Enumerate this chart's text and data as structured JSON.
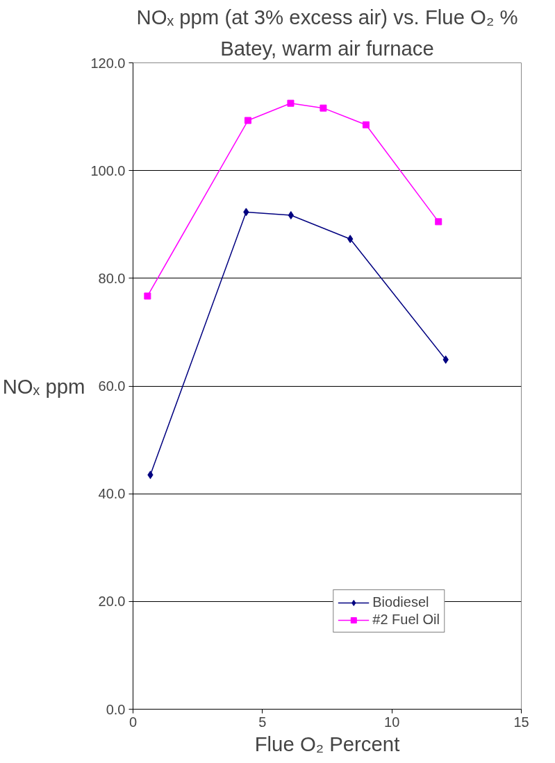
{
  "chart_data": {
    "type": "line",
    "title": "NOₓ ppm (at 3% excess air) vs. Flue O₂ %",
    "subtitle": "Batey, warm air furnace",
    "xlabel": "Flue O₂ Percent",
    "ylabel": "NOₓ ppm",
    "series": [
      {
        "name": "Biodiesel",
        "color": "#000080",
        "marker": "diamond",
        "x": [
          0.67,
          4.37,
          6.1,
          8.39,
          12.08
        ],
        "values": [
          43.5,
          92.3,
          91.7,
          87.3,
          64.9
        ]
      },
      {
        "name": "#2 Fuel Oil",
        "color": "#ff00ff",
        "marker": "square",
        "x": [
          0.56,
          4.44,
          6.09,
          7.35,
          9.0,
          11.8
        ],
        "values": [
          76.7,
          109.3,
          112.5,
          111.6,
          108.5,
          90.5
        ]
      }
    ],
    "xlim": [
      0,
      15
    ],
    "xticks": [
      0,
      5,
      10,
      15
    ],
    "ylim": [
      0,
      120
    ],
    "yticks": [
      {
        "value": 0,
        "label": "0.0"
      },
      {
        "value": 20,
        "label": "20.0"
      },
      {
        "value": 40,
        "label": "40.0"
      },
      {
        "value": 60,
        "label": "60.0"
      },
      {
        "value": 80,
        "label": "80.0"
      },
      {
        "value": 100,
        "label": "100.0"
      },
      {
        "value": 120,
        "label": "120.0"
      }
    ],
    "grid": "y",
    "legend": "bottom right",
    "line_style": "solid"
  }
}
